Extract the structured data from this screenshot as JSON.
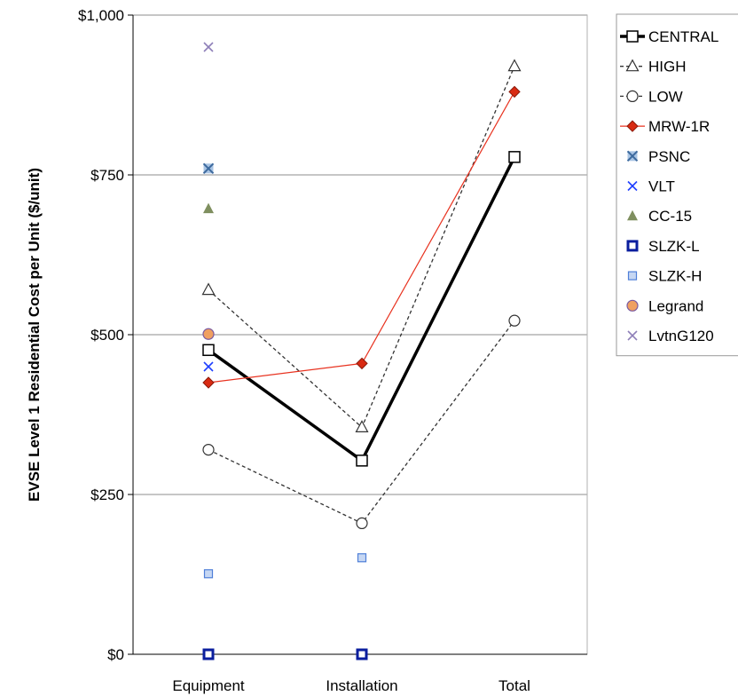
{
  "chart_data": {
    "type": "line",
    "categories": [
      "Equipment",
      "Installation",
      "Total"
    ],
    "ylabel": "EVSE Level 1 Residential Cost per Unit ($/unit)",
    "xlabel": "",
    "ylim": [
      0,
      1000
    ],
    "yticks": [
      0,
      250,
      500,
      750,
      1000
    ],
    "ytick_labels": [
      "$0",
      "$250",
      "$500",
      "$750",
      "$1,000"
    ],
    "grid": "horizontal",
    "legend_position": "right",
    "series": [
      {
        "name": "CENTRAL",
        "values": [
          476,
          303,
          778
        ],
        "line": "solid-thick",
        "color": "#000000",
        "marker": "square-open"
      },
      {
        "name": "HIGH",
        "values": [
          570,
          355,
          920
        ],
        "line": "dashed",
        "color": "#333333",
        "marker": "triangle-open"
      },
      {
        "name": "LOW",
        "values": [
          320,
          205,
          522
        ],
        "line": "dashed",
        "color": "#333333",
        "marker": "circle-open"
      },
      {
        "name": "MRW-1R",
        "values": [
          425,
          455,
          880
        ],
        "line": "solid-thin",
        "color": "#e8321f",
        "marker": "diamond-red"
      },
      {
        "name": "PSNC",
        "values": [
          760,
          null,
          null
        ],
        "line": "none",
        "color": "#4f81bd",
        "marker": "x-box"
      },
      {
        "name": "VLT",
        "values": [
          450,
          null,
          null
        ],
        "line": "none",
        "color": "#1f3fff",
        "marker": "x"
      },
      {
        "name": "CC-15",
        "values": [
          697,
          null,
          null
        ],
        "line": "none",
        "color": "#7f8f5f",
        "marker": "triangle-filled"
      },
      {
        "name": "SLZK-L",
        "values": [
          0,
          0,
          null
        ],
        "line": "none",
        "color": "#0a1e9e",
        "marker": "square-navy"
      },
      {
        "name": "SLZK-H",
        "values": [
          126,
          151,
          null
        ],
        "line": "none",
        "color": "#4f7fd8",
        "marker": "square-light"
      },
      {
        "name": "Legrand",
        "values": [
          501,
          null,
          null
        ],
        "line": "none",
        "color": "#f0a060",
        "marker": "circle-orange"
      },
      {
        "name": "LvtnG120",
        "values": [
          950,
          null,
          null
        ],
        "line": "none",
        "color": "#8e7fb8",
        "marker": "x-purple"
      }
    ]
  }
}
